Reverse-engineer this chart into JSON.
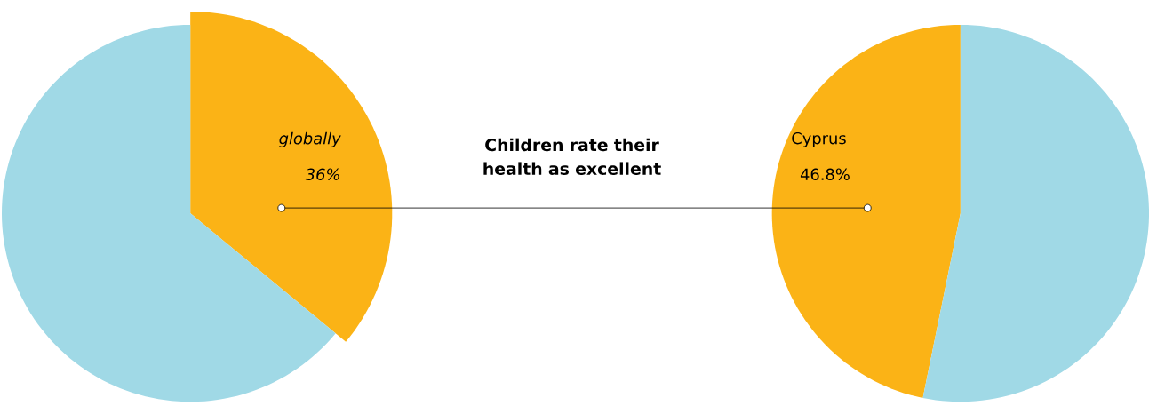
{
  "chart_data": [
    {
      "type": "pie",
      "categories": [
        "globally",
        null
      ],
      "values": [
        36,
        64
      ],
      "value_labels": [
        "36%",
        null
      ],
      "colors": [
        "#fbb316",
        "#a0d9e6"
      ]
    },
    {
      "type": "other",
      "title": "Children rate their health as excellent"
    },
    {
      "type": "pie",
      "categories": [
        "Cyprus",
        null
      ],
      "values": [
        46.8,
        53.2
      ],
      "value_labels": [
        "46.8%",
        null
      ],
      "colors": [
        "#fbb316",
        "#a0d9e6"
      ]
    }
  ]
}
